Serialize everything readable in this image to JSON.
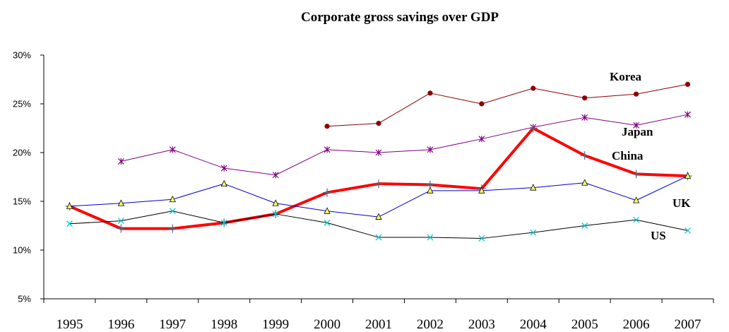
{
  "chart_data": {
    "type": "line",
    "title": "Corporate gross savings over GDP",
    "xlabel": "",
    "ylabel": "",
    "x": [
      "1995",
      "1996",
      "1997",
      "1998",
      "1999",
      "2000",
      "2001",
      "2002",
      "2003",
      "2004",
      "2005",
      "2006",
      "2007"
    ],
    "yticks": [
      "5%",
      "10%",
      "15%",
      "20%",
      "25%",
      "30%"
    ],
    "ylim": [
      5,
      30
    ],
    "grid": false,
    "legend": "none",
    "series": [
      {
        "name": "Korea",
        "color": "#8B0000",
        "marker": "dot",
        "values": [
          null,
          null,
          null,
          null,
          null,
          22.7,
          23.0,
          26.1,
          25.0,
          26.6,
          25.6,
          26.0,
          27.0
        ]
      },
      {
        "name": "Japan",
        "color": "#800080",
        "marker": "star",
        "values": [
          null,
          19.1,
          20.3,
          18.4,
          17.7,
          20.3,
          20.0,
          20.3,
          21.4,
          22.6,
          23.6,
          22.8,
          23.9
        ]
      },
      {
        "name": "China",
        "color": "#FF0000",
        "marker": "plus",
        "values": [
          14.5,
          12.2,
          12.2,
          12.8,
          13.7,
          15.9,
          16.8,
          16.7,
          16.3,
          22.5,
          19.7,
          17.8,
          17.6
        ]
      },
      {
        "name": "UK",
        "color": "#0000CC",
        "marker": "triangle",
        "values": [
          14.5,
          14.8,
          15.2,
          16.8,
          14.8,
          14.0,
          13.4,
          16.1,
          16.1,
          16.4,
          16.9,
          15.1,
          17.6
        ]
      },
      {
        "name": "US",
        "color": "#000000",
        "marker": "x",
        "values": [
          12.7,
          13.0,
          14.0,
          12.8,
          13.7,
          12.8,
          11.3,
          11.3,
          11.2,
          11.8,
          12.5,
          13.1,
          12.0
        ]
      }
    ],
    "annotations": [
      {
        "text": "Korea",
        "series": "Korea"
      },
      {
        "text": "Japan",
        "series": "Japan"
      },
      {
        "text": "China",
        "series": "China"
      },
      {
        "text": "UK",
        "series": "UK"
      },
      {
        "text": "US",
        "series": "US"
      }
    ]
  }
}
